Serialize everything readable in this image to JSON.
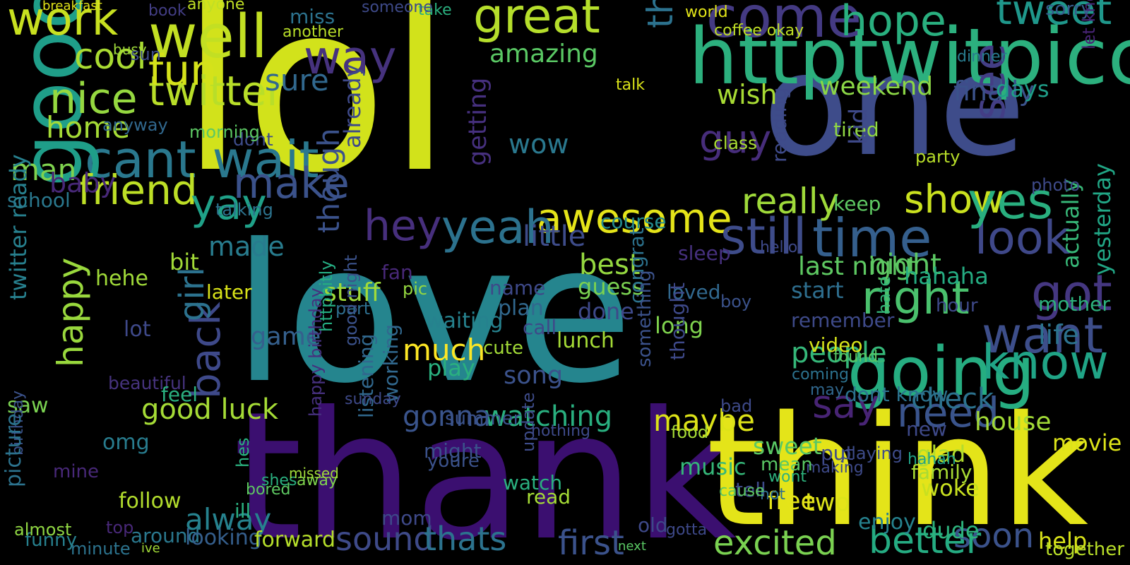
{
  "words": [
    {
      "text": "lol",
      "color": "#d2e21b"
    },
    {
      "text": "love",
      "color": "#25858e"
    },
    {
      "text": "haha",
      "color": "#22a884"
    },
    {
      "text": "thank",
      "color": "#3b0f70"
    },
    {
      "text": "think",
      "color": "#e4e419"
    },
    {
      "text": "one",
      "color": "#3e4c8a"
    },
    {
      "text": "httptwitpiccom",
      "color": "#2cb07e"
    },
    {
      "text": "cant wait",
      "color": "#2a788e"
    },
    {
      "text": "good morning",
      "color": "#1f9e89"
    },
    {
      "text": "going",
      "color": "#26ad81"
    },
    {
      "text": "awesome",
      "color": "#e5e419"
    },
    {
      "text": "well",
      "color": "#c2df23"
    },
    {
      "text": "work",
      "color": "#c8e020"
    },
    {
      "text": "great",
      "color": "#b5de2b"
    },
    {
      "text": "tomorrow",
      "color": "#46337e"
    },
    {
      "text": "tonight",
      "color": "#3e4a89"
    },
    {
      "text": "twitter",
      "color": "#b8de29"
    },
    {
      "text": "friend",
      "color": "#bddf26"
    },
    {
      "text": "come",
      "color": "#443a83"
    },
    {
      "text": "hope",
      "color": "#29af7f"
    },
    {
      "text": "tweet",
      "color": "#1f978b"
    },
    {
      "text": "fun",
      "color": "#d5e21a"
    },
    {
      "text": "cool",
      "color": "#aadc32"
    },
    {
      "text": "nice",
      "color": "#95d840"
    },
    {
      "text": "still",
      "color": "#3e4c8a"
    },
    {
      "text": "time",
      "color": "#355f8d"
    },
    {
      "text": "look",
      "color": "#3f4889"
    },
    {
      "text": "hey",
      "color": "#472f7d"
    },
    {
      "text": "yeah",
      "color": "#2c728e"
    },
    {
      "text": "show",
      "color": "#cae11f"
    },
    {
      "text": "yes",
      "color": "#29af7f"
    },
    {
      "text": "see",
      "color": "#433e85"
    },
    {
      "text": "want",
      "color": "#3d4e8a"
    },
    {
      "text": "know",
      "color": "#20a486"
    },
    {
      "text": "need",
      "color": "#3a548c"
    },
    {
      "text": "say",
      "color": "#482475"
    },
    {
      "text": "got",
      "color": "#453781"
    },
    {
      "text": "right",
      "color": "#4ac16d"
    },
    {
      "text": "way",
      "color": "#46327e"
    },
    {
      "text": "make",
      "color": "#3b528b"
    },
    {
      "text": "guy",
      "color": "#472d7b"
    },
    {
      "text": "thing",
      "color": "#2c728e"
    },
    {
      "text": "though",
      "color": "#3b528b"
    },
    {
      "text": "yay",
      "color": "#1fa188"
    },
    {
      "text": "happy",
      "color": "#99d83d"
    },
    {
      "text": "back",
      "color": "#3e4989"
    },
    {
      "text": "girl",
      "color": "#2c728e"
    },
    {
      "text": "home",
      "color": "#a5db36"
    },
    {
      "text": "man",
      "color": "#7fd34e"
    },
    {
      "text": "baby",
      "color": "#482878"
    },
    {
      "text": "really",
      "color": "#9fda3a"
    },
    {
      "text": "better",
      "color": "#25ac82"
    },
    {
      "text": "excited",
      "color": "#7ad151"
    },
    {
      "text": "first",
      "color": "#3b528b"
    },
    {
      "text": "sound",
      "color": "#3e4a89"
    },
    {
      "text": "thats",
      "color": "#2c738e"
    },
    {
      "text": "soon",
      "color": "#3b528b"
    },
    {
      "text": "help",
      "color": "#d8e219"
    },
    {
      "text": "much",
      "color": "#fde725"
    },
    {
      "text": "watching",
      "color": "#29af7f"
    },
    {
      "text": "gonna",
      "color": "#3a548c"
    },
    {
      "text": "maybe",
      "color": "#dde318"
    },
    {
      "text": "check",
      "color": "#2c728e"
    },
    {
      "text": "house",
      "color": "#a2da37"
    },
    {
      "text": "people",
      "color": "#35b779"
    },
    {
      "text": "night",
      "color": "#5cc863"
    },
    {
      "text": "last night",
      "color": "#5ec962"
    },
    {
      "text": "best",
      "color": "#95d840"
    },
    {
      "text": "little",
      "color": "#3e4c8a"
    },
    {
      "text": "hahaha",
      "color": "#25ac82"
    },
    {
      "text": "made",
      "color": "#287c8e"
    },
    {
      "text": "stuff",
      "color": "#a0da39"
    },
    {
      "text": "later",
      "color": "#d8e219"
    },
    {
      "text": "follow",
      "color": "#b2dd2d"
    },
    {
      "text": "around",
      "color": "#2a788e"
    },
    {
      "text": "alway",
      "color": "#26828e"
    },
    {
      "text": "looking",
      "color": "#355f8d"
    },
    {
      "text": "forward",
      "color": "#b5de2b"
    },
    {
      "text": "sure",
      "color": "#31688e"
    },
    {
      "text": "amazing",
      "color": "#5ac864"
    },
    {
      "text": "weekend",
      "color": "#8bd646"
    },
    {
      "text": "wish",
      "color": "#a8db34"
    },
    {
      "text": "finally",
      "color": "#3b528b"
    },
    {
      "text": "days",
      "color": "#1f9e89"
    },
    {
      "text": "actually",
      "color": "#37b878"
    },
    {
      "text": "yesterday",
      "color": "#21a685"
    },
    {
      "text": "life",
      "color": "#2c728e"
    },
    {
      "text": "mother",
      "color": "#2db27d"
    },
    {
      "text": "movie",
      "color": "#dce319"
    },
    {
      "text": "together",
      "color": "#b8de29"
    },
    {
      "text": "wow",
      "color": "#2a788e"
    },
    {
      "text": "song",
      "color": "#3b528b"
    },
    {
      "text": "getting",
      "color": "#46307e"
    },
    {
      "text": "lunch",
      "color": "#a5db36"
    },
    {
      "text": "done",
      "color": "#3e4989"
    },
    {
      "text": "dont",
      "color": "#3e4c8a"
    },
    {
      "text": "twitter ready",
      "color": "#27808e"
    },
    {
      "text": "school",
      "color": "#2a788e"
    },
    {
      "text": "bit",
      "color": "#a2da37"
    },
    {
      "text": "sorry",
      "color": "#365d8d"
    },
    {
      "text": "let know",
      "color": "#482475"
    },
    {
      "text": "party",
      "color": "#b8de29"
    },
    {
      "text": "photo",
      "color": "#3e4a89"
    },
    {
      "text": "sleep",
      "color": "#46307e"
    },
    {
      "text": "long",
      "color": "#7fd34e"
    },
    {
      "text": "loved",
      "color": "#31688e"
    },
    {
      "text": "play",
      "color": "#2ab07f"
    },
    {
      "text": "waiting",
      "color": "#26828e"
    },
    {
      "text": "video",
      "color": "#d5e21a"
    },
    {
      "text": "music",
      "color": "#35b779"
    },
    {
      "text": "tired",
      "color": "#90d743"
    },
    {
      "text": "coffee okay",
      "color": "#c0df25"
    },
    {
      "text": "world",
      "color": "#e2e418"
    },
    {
      "text": "miss",
      "color": "#2c728e"
    },
    {
      "text": "already",
      "color": "#3e4989"
    },
    {
      "text": "guess",
      "color": "#7ad151"
    },
    {
      "text": "keep",
      "color": "#5ec962"
    },
    {
      "text": "start",
      "color": "#2e6e8e"
    },
    {
      "text": "plan",
      "color": "#31688e"
    },
    {
      "text": "mom",
      "color": "#3e4989"
    },
    {
      "text": "two",
      "color": "#dce319"
    },
    {
      "text": "free",
      "color": "#e5e419"
    },
    {
      "text": "old",
      "color": "#3e4989"
    },
    {
      "text": "kid",
      "color": "#3e4989"
    },
    {
      "text": "game",
      "color": "#35608d"
    },
    {
      "text": "lot",
      "color": "#3e4989"
    },
    {
      "text": "omg",
      "color": "#287c8e"
    },
    {
      "text": "hehe",
      "color": "#a0da39"
    },
    {
      "text": "congrat",
      "color": "#2c728e"
    },
    {
      "text": "ill",
      "color": "#2ab07f"
    },
    {
      "text": "summer",
      "color": "#3b528b"
    },
    {
      "text": "sweet",
      "color": "#5ac864"
    },
    {
      "text": "family",
      "color": "#a8db34"
    },
    {
      "text": "glad",
      "color": "#b2dd2d"
    },
    {
      "text": "woke",
      "color": "#c8e020"
    },
    {
      "text": "fan",
      "color": "#482878"
    },
    {
      "text": "pic",
      "color": "#95d840"
    },
    {
      "text": "hahah",
      "color": "#1fa188"
    },
    {
      "text": "enjoy",
      "color": "#26828e"
    },
    {
      "text": "funny",
      "color": "#27808e"
    },
    {
      "text": "saw",
      "color": "#7ad151"
    },
    {
      "text": "mine",
      "color": "#482878"
    },
    {
      "text": "birthday",
      "color": "#3b528b"
    },
    {
      "text": "picture",
      "color": "#2c738e"
    },
    {
      "text": "beautiful",
      "color": "#46337e"
    },
    {
      "text": "talking",
      "color": "#2c738e"
    },
    {
      "text": "feel",
      "color": "#2ab07f"
    },
    {
      "text": "anyway",
      "color": "#31688e"
    },
    {
      "text": "morning",
      "color": "#5cc863"
    },
    {
      "text": "course",
      "color": "#23898e"
    },
    {
      "text": "youre",
      "color": "#3b528b"
    },
    {
      "text": "busy",
      "color": "#9fda3a"
    },
    {
      "text": "sun",
      "color": "#3e4a89"
    },
    {
      "text": "another",
      "color": "#b8de29"
    },
    {
      "text": "book",
      "color": "#433e85"
    },
    {
      "text": "breakfast",
      "color": "#e2e418"
    },
    {
      "text": "anyone",
      "color": "#c0df25"
    },
    {
      "text": "talk",
      "color": "#d8e219"
    },
    {
      "text": "take",
      "color": "#2ab07f"
    },
    {
      "text": "someone",
      "color": "#3e4a89"
    },
    {
      "text": "dinner",
      "color": "#287c8e"
    },
    {
      "text": "hard",
      "color": "#a2da37"
    },
    {
      "text": "hello",
      "color": "#3e4989"
    },
    {
      "text": "boy",
      "color": "#3b528b"
    },
    {
      "text": "call",
      "color": "#3e4989"
    },
    {
      "text": "cute",
      "color": "#a2da37"
    },
    {
      "text": "hate",
      "color": "#35b779"
    },
    {
      "text": "remember",
      "color": "#3e4a89"
    },
    {
      "text": "name",
      "color": "#3e4989"
    },
    {
      "text": "reading",
      "color": "#3e4a89"
    },
    {
      "text": "class",
      "color": "#a8db34"
    },
    {
      "text": "almost",
      "color": "#90d743"
    },
    {
      "text": "minute",
      "color": "#2c738e"
    },
    {
      "text": "top",
      "color": "#482878"
    },
    {
      "text": "ive",
      "color": "#a2da37"
    },
    {
      "text": "watch",
      "color": "#2ab07f"
    },
    {
      "text": "might",
      "color": "#3b528b"
    },
    {
      "text": "part",
      "color": "#2e6e8e"
    },
    {
      "text": "update",
      "color": "#3e4c8a"
    },
    {
      "text": "dude",
      "color": "#2db27d"
    },
    {
      "text": "tell",
      "color": "#3e4a89"
    },
    {
      "text": "hot",
      "color": "#2e6e8e"
    },
    {
      "text": "put",
      "color": "#3e4989"
    },
    {
      "text": "dont know",
      "color": "#2c728e"
    },
    {
      "text": "listening",
      "color": "#31688e"
    },
    {
      "text": "working",
      "color": "#31688e"
    },
    {
      "text": "thought",
      "color": "#3e4989"
    },
    {
      "text": "something",
      "color": "#3b528b"
    },
    {
      "text": "good night",
      "color": "#3b528b"
    },
    {
      "text": "good luck",
      "color": "#a5db36"
    },
    {
      "text": "happy birthday",
      "color": "#46307e"
    },
    {
      "text": "httpbitly",
      "color": "#25ac82"
    },
    {
      "text": "read",
      "color": "#a5db36"
    },
    {
      "text": "hes",
      "color": "#2ab07f"
    },
    {
      "text": "away",
      "color": "#7fd34e"
    },
    {
      "text": "shes",
      "color": "#2ab07f"
    },
    {
      "text": "missed",
      "color": "#a0da39"
    },
    {
      "text": "bored",
      "color": "#5ec962"
    },
    {
      "text": "making",
      "color": "#3e4a89"
    },
    {
      "text": "playing",
      "color": "#3e4c8a"
    },
    {
      "text": "new",
      "color": "#3e4989"
    },
    {
      "text": "bad",
      "color": "#3e4a89"
    },
    {
      "text": "may",
      "color": "#31688e"
    },
    {
      "text": "coming",
      "color": "#2c728e"
    },
    {
      "text": "found",
      "color": "#5ac864"
    },
    {
      "text": "mean",
      "color": "#5ac864"
    },
    {
      "text": "wont",
      "color": "#2db27d"
    },
    {
      "text": "food",
      "color": "#a5db36"
    },
    {
      "text": "cause",
      "color": "#5cc863"
    },
    {
      "text": "gotta",
      "color": "#3e4989"
    },
    {
      "text": "sunday",
      "color": "#3e4989"
    },
    {
      "text": "nothing",
      "color": "#3e4a89"
    },
    {
      "text": "hour",
      "color": "#3e4989"
    },
    {
      "text": "next",
      "color": "#5ac864"
    },
    {
      "text": "early",
      "color": "#3e4989"
    }
  ]
}
